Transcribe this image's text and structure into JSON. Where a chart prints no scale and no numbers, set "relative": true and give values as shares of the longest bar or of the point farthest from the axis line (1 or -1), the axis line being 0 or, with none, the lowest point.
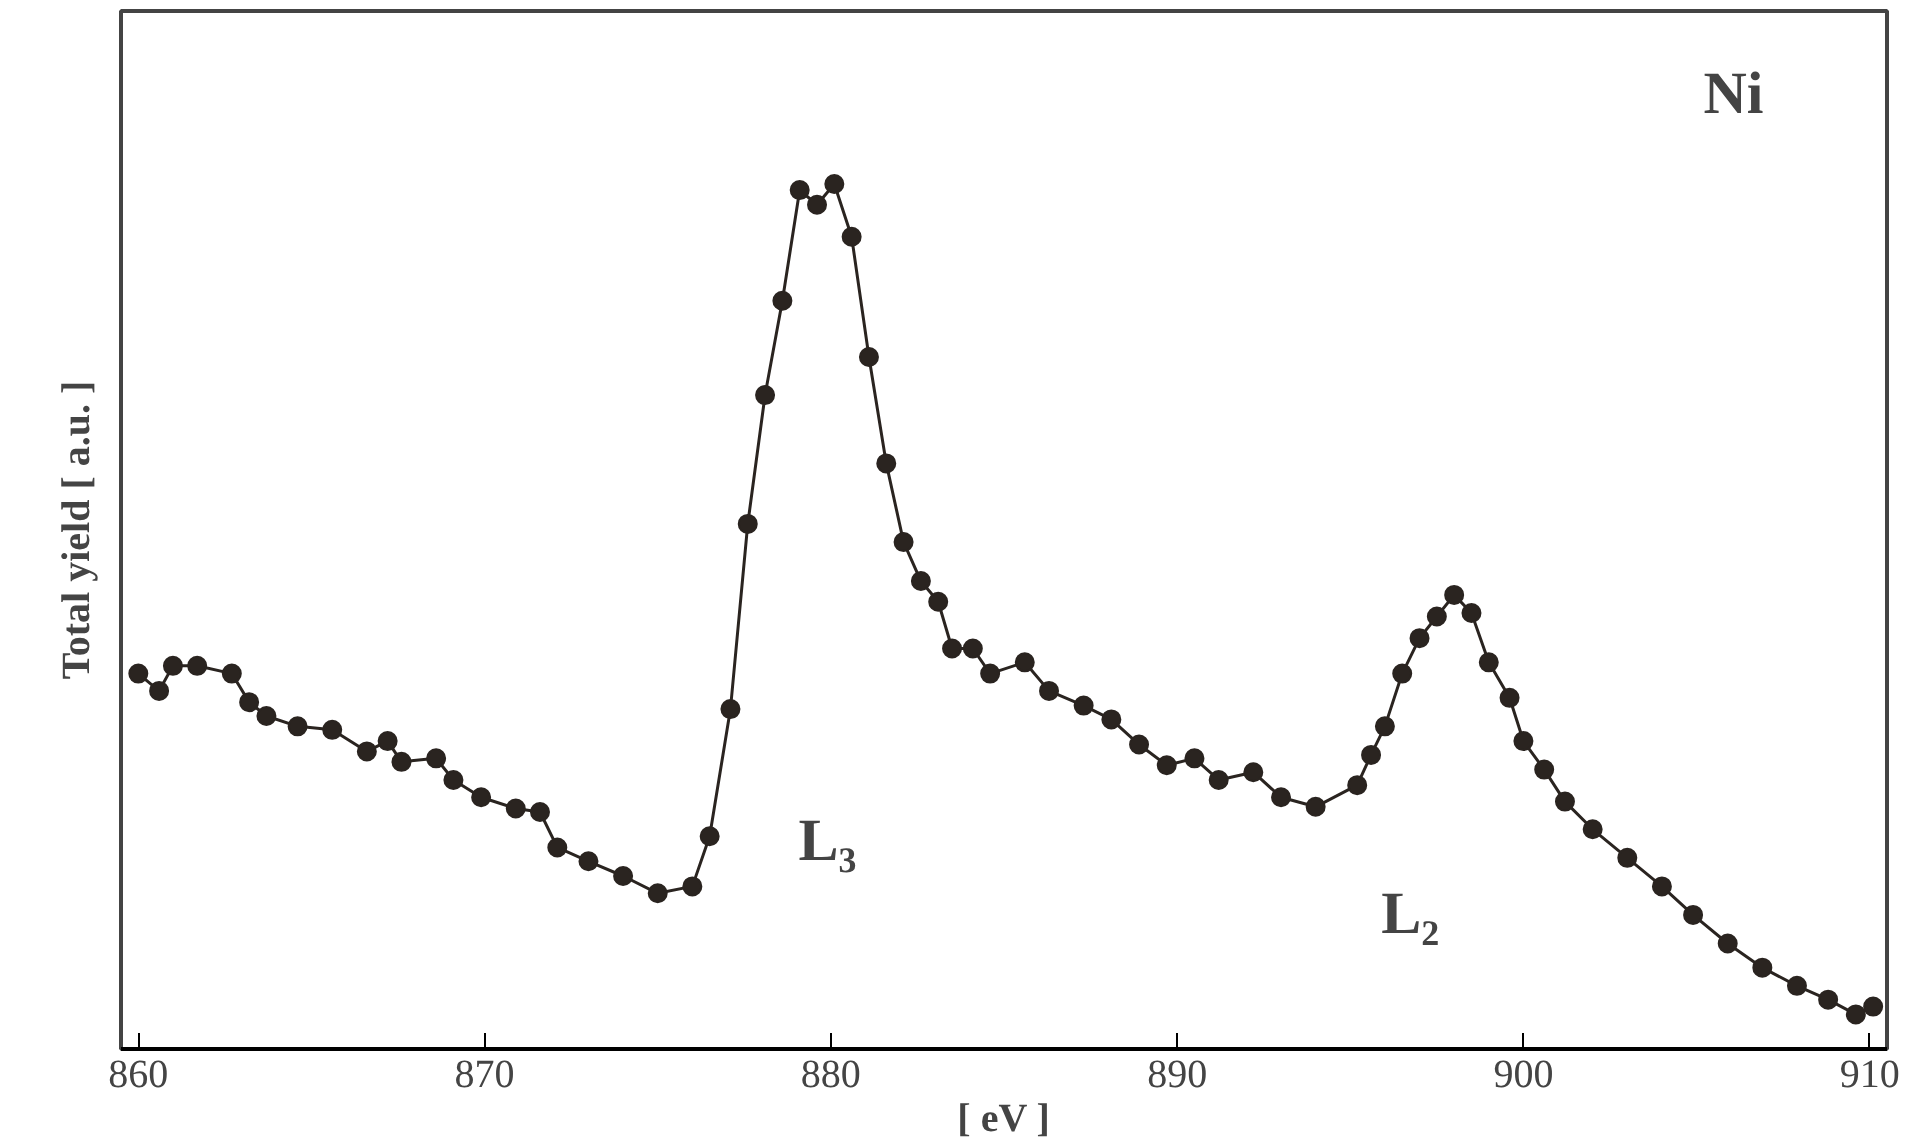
{
  "chart_data": {
    "type": "line",
    "relative": true,
    "xlabel": "[ eV ]",
    "ylabel": "Total yield [ a.u. ]",
    "xlim": [
      859.5,
      910.5
    ],
    "xticks": [
      860,
      870,
      880,
      890,
      900,
      910
    ],
    "marker": "circle",
    "line_style": "solid",
    "grid": false,
    "annotations": [
      "Ni",
      "L₃",
      "L₂"
    ],
    "series": [
      {
        "color": "#2a2420",
        "x": [
          860.0,
          860.6,
          861.0,
          861.7,
          862.7,
          863.2,
          863.7,
          864.6,
          865.6,
          866.6,
          867.2,
          867.6,
          868.6,
          869.1,
          869.9,
          870.9,
          871.6,
          872.1,
          873.0,
          874.0,
          875.0,
          876.0,
          876.5,
          877.1,
          877.6,
          878.1,
          878.6,
          879.1,
          879.6,
          880.1,
          880.6,
          881.1,
          881.6,
          882.1,
          882.6,
          883.1,
          883.5,
          884.1,
          884.6,
          885.6,
          886.3,
          887.3,
          888.1,
          888.9,
          889.7,
          890.5,
          891.2,
          892.2,
          893.0,
          894.0,
          895.2,
          895.6,
          896.0,
          896.5,
          897.0,
          897.5,
          898.0,
          898.5,
          899.0,
          899.6,
          900.0,
          900.6,
          901.2,
          902.0,
          903.0,
          904.0,
          904.9,
          905.9,
          906.9,
          907.9,
          908.8,
          909.6,
          910.1
        ],
        "values": [
          0.434,
          0.414,
          0.443,
          0.443,
          0.434,
          0.401,
          0.385,
          0.373,
          0.369,
          0.344,
          0.356,
          0.332,
          0.336,
          0.311,
          0.291,
          0.278,
          0.274,
          0.233,
          0.217,
          0.2,
          0.18,
          0.188,
          0.246,
          0.393,
          0.607,
          0.756,
          0.865,
          0.993,
          0.976,
          1.0,
          0.939,
          0.8,
          0.677,
          0.586,
          0.541,
          0.517,
          0.463,
          0.463,
          0.434,
          0.447,
          0.414,
          0.397,
          0.381,
          0.352,
          0.328,
          0.336,
          0.311,
          0.32,
          0.291,
          0.28,
          0.305,
          0.34,
          0.373,
          0.434,
          0.475,
          0.5,
          0.525,
          0.504,
          0.447,
          0.406,
          0.356,
          0.323,
          0.286,
          0.254,
          0.221,
          0.188,
          0.155,
          0.122,
          0.094,
          0.073,
          0.057,
          0.04,
          0.049
        ]
      }
    ]
  }
}
